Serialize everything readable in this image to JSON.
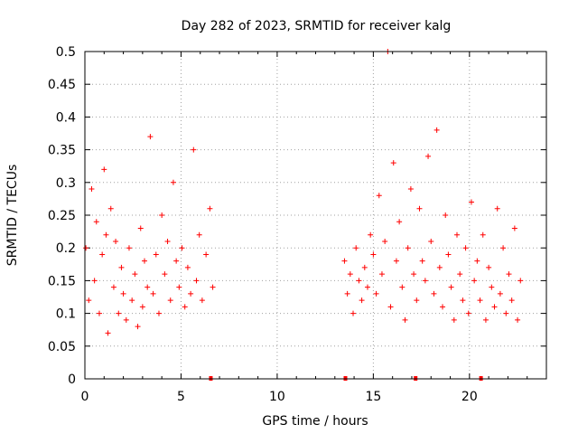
{
  "chart_data": {
    "type": "scatter",
    "title": "Day 282 of 2023, SRMTID for receiver kalg",
    "xlabel": "GPS time / hours",
    "ylabel": "SRMTID / TECUs",
    "xlim": [
      0,
      24
    ],
    "ylim": [
      0,
      0.5
    ],
    "x_ticks": [
      0,
      5,
      10,
      15,
      20
    ],
    "y_ticks": [
      0,
      0.05,
      0.1,
      0.15,
      0.2,
      0.25,
      0.3,
      0.35,
      0.4,
      0.45,
      0.5
    ],
    "x_tick_labels": [
      "0",
      "5",
      "10",
      "15",
      "20"
    ],
    "y_tick_labels": [
      "0",
      "0.05",
      "0.1",
      "0.15",
      "0.2",
      "0.25",
      "0.3",
      "0.35",
      "0.4",
      "0.45",
      "0.5"
    ],
    "grid": true,
    "marker": "+",
    "series": [
      {
        "name": "SRMTID",
        "color": "#ff0000",
        "x": [
          0.05,
          0.2,
          0.35,
          0.5,
          0.6,
          0.75,
          0.9,
          1.0,
          1.1,
          1.2,
          1.35,
          1.5,
          1.6,
          1.75,
          1.9,
          2.0,
          2.15,
          2.3,
          2.45,
          2.6,
          2.75,
          2.9,
          3.0,
          3.1,
          3.25,
          3.4,
          3.55,
          3.7,
          3.85,
          4.0,
          4.15,
          4.3,
          4.45,
          4.6,
          4.75,
          4.9,
          5.05,
          5.2,
          5.35,
          5.5,
          5.65,
          5.8,
          5.95,
          6.1,
          6.3,
          6.5,
          6.65,
          13.5,
          13.65,
          13.8,
          13.95,
          14.1,
          14.25,
          14.4,
          14.55,
          14.7,
          14.85,
          15.0,
          15.15,
          15.3,
          15.45,
          15.6,
          15.75,
          15.9,
          16.05,
          16.2,
          16.35,
          16.5,
          16.65,
          16.8,
          16.95,
          17.1,
          17.25,
          17.4,
          17.55,
          17.7,
          17.85,
          18.0,
          18.15,
          18.3,
          18.45,
          18.6,
          18.75,
          18.9,
          19.05,
          19.2,
          19.35,
          19.5,
          19.65,
          19.8,
          19.95,
          20.1,
          20.25,
          20.4,
          20.55,
          20.7,
          20.85,
          21.0,
          21.15,
          21.3,
          21.45,
          21.6,
          21.75,
          21.9,
          22.05,
          22.2,
          22.35,
          22.5,
          22.65
        ],
        "y": [
          0.2,
          0.12,
          0.29,
          0.15,
          0.24,
          0.1,
          0.19,
          0.32,
          0.22,
          0.07,
          0.26,
          0.14,
          0.21,
          0.1,
          0.17,
          0.13,
          0.09,
          0.2,
          0.12,
          0.16,
          0.08,
          0.23,
          0.11,
          0.18,
          0.14,
          0.37,
          0.13,
          0.19,
          0.1,
          0.25,
          0.16,
          0.21,
          0.12,
          0.3,
          0.18,
          0.14,
          0.2,
          0.11,
          0.17,
          0.13,
          0.35,
          0.15,
          0.22,
          0.12,
          0.19,
          0.26,
          0.14,
          0.18,
          0.13,
          0.16,
          0.1,
          0.2,
          0.15,
          0.12,
          0.17,
          0.14,
          0.22,
          0.19,
          0.13,
          0.28,
          0.16,
          0.21,
          0.5,
          0.11,
          0.33,
          0.18,
          0.24,
          0.14,
          0.09,
          0.2,
          0.29,
          0.16,
          0.12,
          0.26,
          0.18,
          0.15,
          0.34,
          0.21,
          0.13,
          0.38,
          0.17,
          0.11,
          0.25,
          0.19,
          0.14,
          0.09,
          0.22,
          0.16,
          0.12,
          0.2,
          0.1,
          0.27,
          0.15,
          0.18,
          0.12,
          0.22,
          0.09,
          0.17,
          0.14,
          0.11,
          0.26,
          0.13,
          0.2,
          0.1,
          0.16,
          0.12,
          0.23,
          0.09,
          0.15
        ]
      }
    ],
    "baseline_markers_x": [
      6.55,
      13.55,
      17.2,
      20.6
    ]
  }
}
